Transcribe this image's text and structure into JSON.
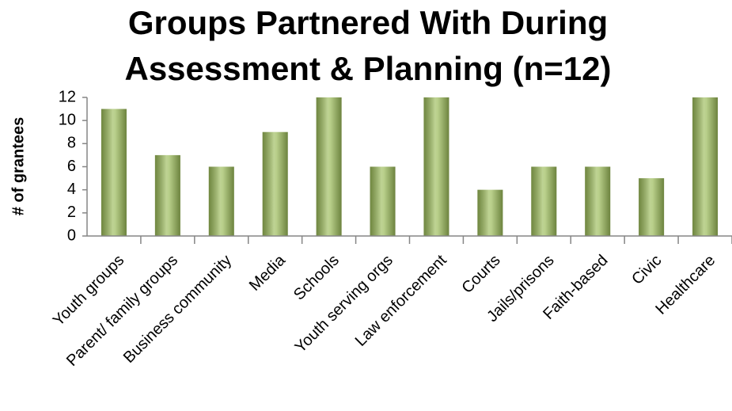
{
  "chart_data": {
    "type": "bar",
    "title": [
      "Groups Partnered With During",
      "Assessment & Planning (n=12)"
    ],
    "y_label": "# of grantees",
    "categories": [
      "Youth groups",
      "Parent/ family groups",
      "Business community",
      "Media",
      "Schools",
      "Youth serving orgs",
      "Law enforcement",
      "Courts",
      "Jails/prisons",
      "Faith-based",
      "Civic",
      "Healthcare"
    ],
    "values": [
      11,
      7,
      6,
      9,
      12,
      6,
      12,
      4,
      6,
      6,
      5,
      12
    ],
    "color": "#9bbb59",
    "ylim": [
      0,
      12
    ],
    "yticks": [
      0,
      2,
      4,
      6,
      8,
      10,
      12
    ],
    "grid": false
  }
}
